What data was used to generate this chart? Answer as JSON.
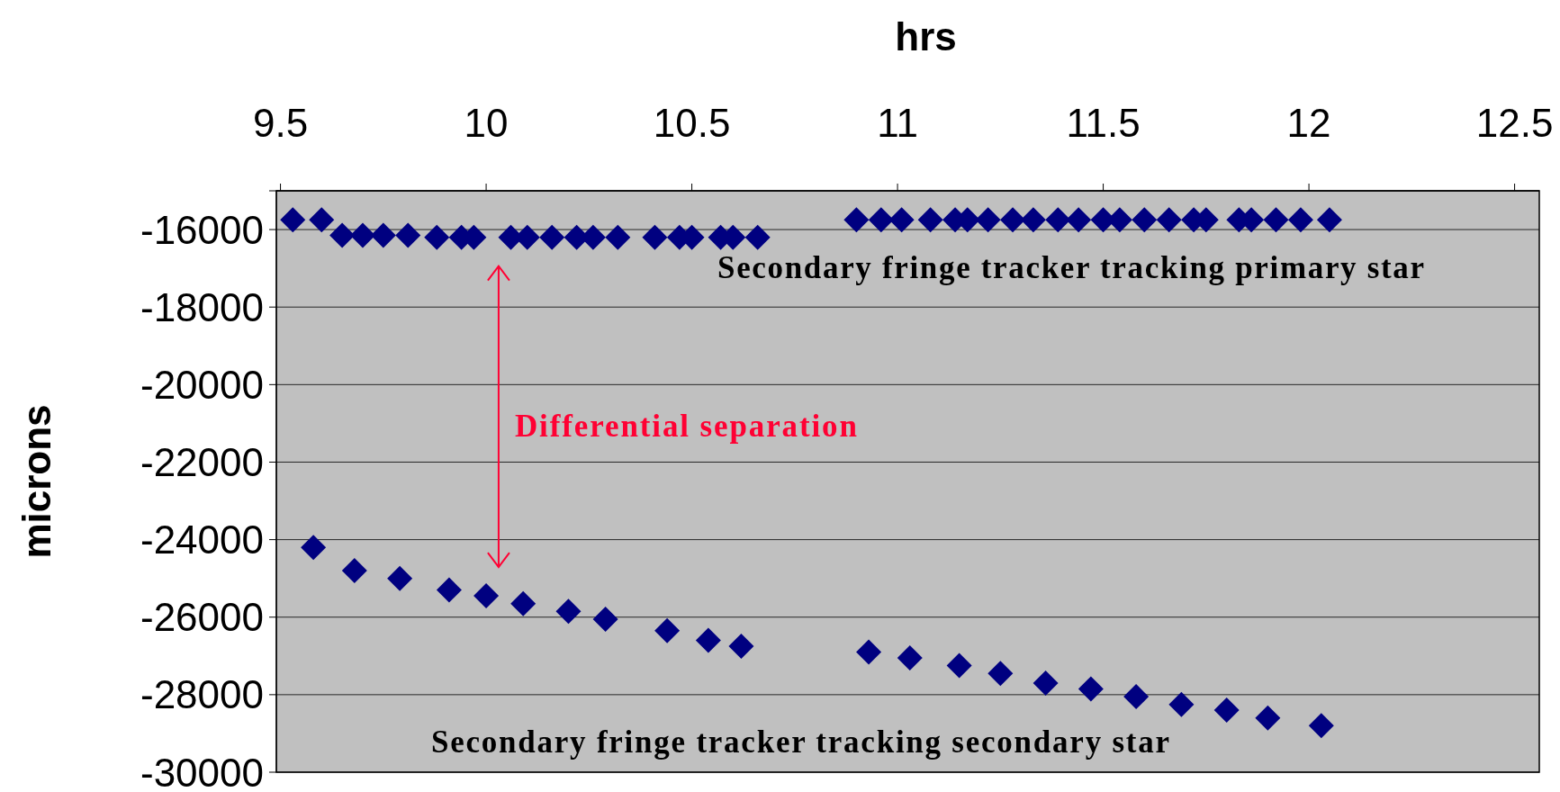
{
  "chart_data": {
    "type": "scatter",
    "xlabel": "hrs",
    "ylabel": "microns",
    "xlim": [
      9.49,
      12.56
    ],
    "xticks": [
      9.5,
      10,
      10.5,
      11,
      11.5,
      12,
      12.5
    ],
    "ylim": [
      -30000,
      -15000
    ],
    "yticks": [
      {
        "value": -15000,
        "label": null
      },
      -16000,
      -18000,
      -20000,
      -22000,
      -24000,
      -26000,
      -28000,
      -30000
    ],
    "grid": "y",
    "marker": "diamond",
    "series": [
      {
        "name": "Secondary fringe tracker tracking primary star",
        "color": "#000080",
        "x": [
          9.53,
          9.6,
          9.65,
          9.7,
          9.75,
          9.81,
          9.88,
          9.94,
          9.97,
          10.06,
          10.1,
          10.16,
          10.22,
          10.26,
          10.32,
          10.41,
          10.47,
          10.5,
          10.57,
          10.6,
          10.66,
          10.9,
          10.96,
          11.01,
          11.08,
          11.14,
          11.17,
          11.22,
          11.28,
          11.33,
          11.39,
          11.44,
          11.5,
          11.54,
          11.6,
          11.66,
          11.72,
          11.75,
          11.83,
          11.86,
          11.92,
          11.98,
          12.05
        ],
        "values": [
          -15750,
          -15750,
          -16150,
          -16150,
          -16150,
          -16150,
          -16200,
          -16200,
          -16200,
          -16200,
          -16200,
          -16200,
          -16200,
          -16200,
          -16200,
          -16200,
          -16200,
          -16200,
          -16200,
          -16200,
          -16200,
          -15750,
          -15750,
          -15750,
          -15750,
          -15750,
          -15750,
          -15750,
          -15750,
          -15750,
          -15750,
          -15750,
          -15750,
          -15750,
          -15750,
          -15750,
          -15750,
          -15750,
          -15750,
          -15750,
          -15750,
          -15750,
          -15750
        ]
      },
      {
        "name": "Secondary fringe tracker tracking secondary star",
        "color": "#000080",
        "x": [
          9.58,
          9.68,
          9.79,
          9.91,
          10.0,
          10.09,
          10.2,
          10.29,
          10.44,
          10.54,
          10.62,
          10.93,
          11.03,
          11.15,
          11.25,
          11.36,
          11.47,
          11.58,
          11.69,
          11.8,
          11.9,
          12.03
        ],
        "values": [
          -24200,
          -24800,
          -25000,
          -25300,
          -25450,
          -25650,
          -25850,
          -26050,
          -26350,
          -26600,
          -26750,
          -26900,
          -27050,
          -27250,
          -27450,
          -27700,
          -27850,
          -28050,
          -28250,
          -28400,
          -28600,
          -28800
        ]
      }
    ],
    "annotations": [
      "Differential separation"
    ]
  }
}
